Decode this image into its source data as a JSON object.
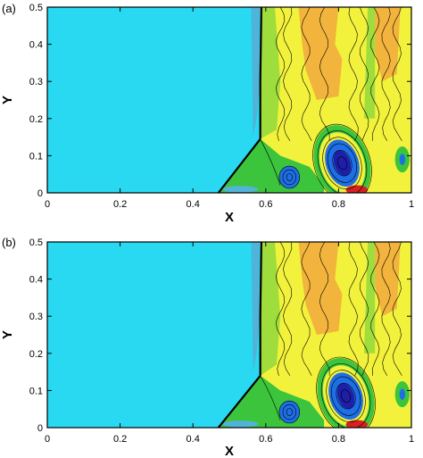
{
  "chart_data": [
    {
      "type": "contour",
      "panel_label": "(a)",
      "xlabel": "X",
      "ylabel": "Y",
      "xlim": [
        0,
        1
      ],
      "ylim": [
        0,
        0.5
      ],
      "xticks": [
        0,
        0.2,
        0.4,
        0.6,
        0.8,
        1
      ],
      "yticks": [
        0,
        0.1,
        0.2,
        0.3,
        0.4,
        0.5
      ],
      "xtick_labels": [
        "0",
        "0.2",
        "0.4",
        "0.6",
        "0.8",
        "1"
      ],
      "ytick_labels": [
        "0",
        "0.1",
        "0.2",
        "0.3",
        "0.4",
        "0.5"
      ],
      "shock_x": 0.585,
      "triple_point": [
        0.585,
        0.145
      ],
      "vortex_center": [
        0.81,
        0.08
      ],
      "background_color": "#29d9f2",
      "colormap": [
        "#1e1ea8",
        "#1e6fe6",
        "#29d9f2",
        "#3cc43c",
        "#9fdd3c",
        "#f2f23c",
        "#f2b43c",
        "#e6782a",
        "#d92020"
      ]
    },
    {
      "type": "contour",
      "panel_label": "(b)",
      "xlabel": "X",
      "ylabel": "Y",
      "xlim": [
        0,
        1
      ],
      "ylim": [
        0,
        0.5
      ],
      "xticks": [
        0,
        0.2,
        0.4,
        0.6,
        0.8,
        1
      ],
      "yticks": [
        0,
        0.1,
        0.2,
        0.3,
        0.4,
        0.5
      ],
      "xtick_labels": [
        "0",
        "0.2",
        "0.4",
        "0.6",
        "0.8",
        "1"
      ],
      "ytick_labels": [
        "0",
        "0.1",
        "0.2",
        "0.3",
        "0.4",
        "0.5"
      ],
      "shock_x": 0.585,
      "triple_point": [
        0.585,
        0.14
      ],
      "vortex_center": [
        0.815,
        0.085
      ],
      "background_color": "#29d9f2",
      "colormap": [
        "#1e1ea8",
        "#1e6fe6",
        "#29d9f2",
        "#3cc43c",
        "#9fdd3c",
        "#f2f23c",
        "#f2b43c",
        "#e6782a",
        "#d92020"
      ]
    }
  ]
}
